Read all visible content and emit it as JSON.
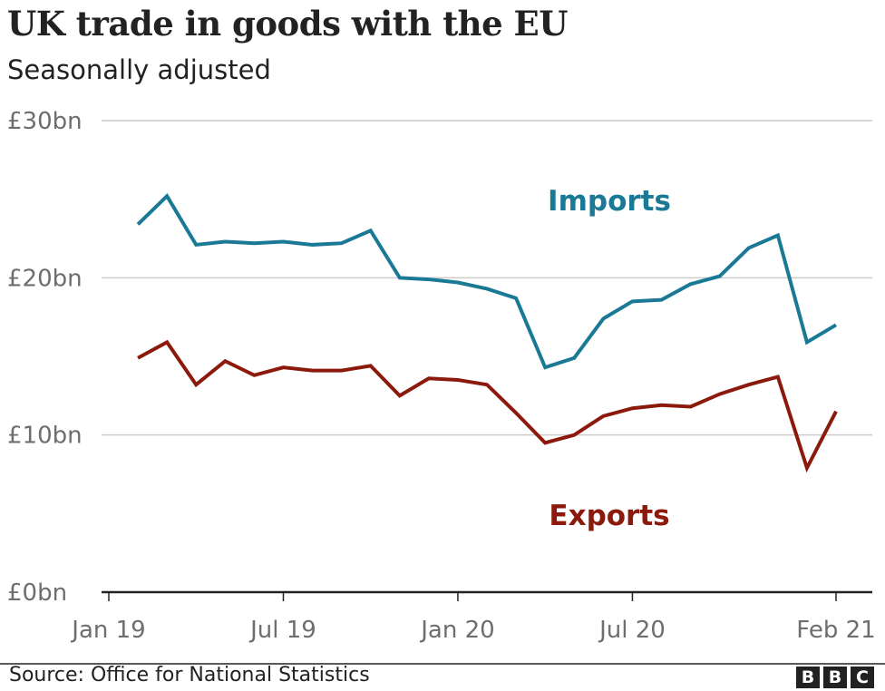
{
  "chart_data": {
    "type": "line",
    "title": "UK trade in goods with the EU",
    "subtitle": "Seasonally adjusted",
    "xlabel": "",
    "ylabel": "",
    "ylim": [
      0,
      30
    ],
    "y_ticks": [
      0,
      10,
      20,
      30
    ],
    "y_tick_labels": [
      "£0bn",
      "£10bn",
      "£20bn",
      "£30bn"
    ],
    "x_tick_labels": [
      "Jan 19",
      "Jul 19",
      "Jan 20",
      "Jul 20",
      "Feb 21"
    ],
    "x_tick_months": [
      0,
      6,
      12,
      18,
      25
    ],
    "grid": true,
    "x": [
      "Feb 19",
      "Mar 19",
      "Apr 19",
      "May 19",
      "Jun 19",
      "Jul 19",
      "Aug 19",
      "Sep 19",
      "Oct 19",
      "Nov 19",
      "Dec 19",
      "Jan 20",
      "Feb 20",
      "Mar 20",
      "Apr 20",
      "May 20",
      "Jun 20",
      "Jul 20",
      "Aug 20",
      "Sep 20",
      "Oct 20",
      "Nov 20",
      "Dec 20",
      "Jan 21",
      "Feb 21"
    ],
    "x_months": [
      1,
      2,
      3,
      4,
      5,
      6,
      7,
      8,
      9,
      10,
      11,
      12,
      13,
      14,
      15,
      16,
      17,
      18,
      19,
      20,
      21,
      22,
      23,
      24,
      25
    ],
    "series": [
      {
        "name": "Imports",
        "color": "#1a7a96",
        "values": [
          23.4,
          25.2,
          22.1,
          22.3,
          22.2,
          22.3,
          22.1,
          22.2,
          23.0,
          20.0,
          19.9,
          19.7,
          19.3,
          18.7,
          14.3,
          14.9,
          17.4,
          18.5,
          18.6,
          19.6,
          20.1,
          21.9,
          22.7,
          15.9,
          17.0
        ]
      },
      {
        "name": "Exports",
        "color": "#8c1a0c",
        "values": [
          14.9,
          15.9,
          13.2,
          14.7,
          13.8,
          14.3,
          14.1,
          14.1,
          14.4,
          12.5,
          13.6,
          13.5,
          13.2,
          11.4,
          9.5,
          10.0,
          11.2,
          11.7,
          11.9,
          11.8,
          12.6,
          13.2,
          13.7,
          7.9,
          11.5
        ]
      }
    ],
    "legend": "inline labels near lines (Imports top-right, Exports bottom-right)"
  },
  "footer": {
    "source": "Source: Office for National Statistics",
    "logo_letters": [
      "B",
      "B",
      "C"
    ]
  }
}
